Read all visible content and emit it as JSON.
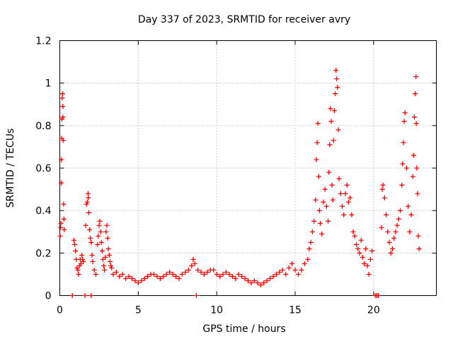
{
  "chart_data": {
    "type": "scatter",
    "title": "Day 337 of 2023, SRMTID for receiver avry",
    "xlabel": "GPS time / hours",
    "ylabel": "SRMTID / TECUs",
    "xlim": [
      0,
      24
    ],
    "ylim": [
      0,
      1.2
    ],
    "xticks": [
      0,
      5,
      10,
      15,
      20
    ],
    "xtick_labels": [
      "0",
      "5",
      "10",
      "15",
      "20"
    ],
    "yticks": [
      0,
      0.2,
      0.4,
      0.6,
      0.8,
      1.0,
      1.2
    ],
    "ytick_labels": [
      "0",
      "0.2",
      "0.4",
      "0.6",
      "0.8",
      "1",
      "1.2"
    ],
    "grid": true,
    "legend": "none",
    "marker": "+",
    "series": [
      {
        "name": "SRMTID",
        "color": "#ff0000",
        "points": [
          [
            0.02,
            0.28
          ],
          [
            0.05,
            0.32
          ],
          [
            0.07,
            0.34
          ],
          [
            0.09,
            0.53
          ],
          [
            0.1,
            0.64
          ],
          [
            0.12,
            0.74
          ],
          [
            0.13,
            0.83
          ],
          [
            0.15,
            0.93
          ],
          [
            0.17,
            0.95
          ],
          [
            0.19,
            0.89
          ],
          [
            0.2,
            0.84
          ],
          [
            0.22,
            0.73
          ],
          [
            0.24,
            0.43
          ],
          [
            0.26,
            0.36
          ],
          [
            0.28,
            0.31
          ],
          [
            0.8,
            0.0
          ],
          [
            0.9,
            0.26
          ],
          [
            0.95,
            0.24
          ],
          [
            1.0,
            0.21
          ],
          [
            1.05,
            0.17
          ],
          [
            1.1,
            0.13
          ],
          [
            1.15,
            0.12
          ],
          [
            1.2,
            0.1
          ],
          [
            1.25,
            0.14
          ],
          [
            1.3,
            0.17
          ],
          [
            1.35,
            0.15
          ],
          [
            1.4,
            0.19
          ],
          [
            1.45,
            0.17
          ],
          [
            1.5,
            0.16
          ],
          [
            1.6,
            0.0
          ],
          [
            1.65,
            0.33
          ],
          [
            1.7,
            0.43
          ],
          [
            1.75,
            0.44
          ],
          [
            1.8,
            0.48
          ],
          [
            1.82,
            0.46
          ],
          [
            1.85,
            0.39
          ],
          [
            1.9,
            0.31
          ],
          [
            1.95,
            0.27
          ],
          [
            2.0,
            0.25
          ],
          [
            2.0,
            0.0
          ],
          [
            2.05,
            0.19
          ],
          [
            2.1,
            0.16
          ],
          [
            2.2,
            0.12
          ],
          [
            2.3,
            0.1
          ],
          [
            2.4,
            0.24
          ],
          [
            2.45,
            0.28
          ],
          [
            2.5,
            0.33
          ],
          [
            2.55,
            0.35
          ],
          [
            2.6,
            0.3
          ],
          [
            2.65,
            0.25
          ],
          [
            2.7,
            0.21
          ],
          [
            2.75,
            0.17
          ],
          [
            2.8,
            0.14
          ],
          [
            2.85,
            0.12
          ],
          [
            2.9,
            0.18
          ],
          [
            2.95,
            0.3
          ],
          [
            3.0,
            0.33
          ],
          [
            3.05,
            0.27
          ],
          [
            3.1,
            0.22
          ],
          [
            3.15,
            0.19
          ],
          [
            3.2,
            0.16
          ],
          [
            3.25,
            0.14
          ],
          [
            3.3,
            0.13
          ],
          [
            3.4,
            0.1
          ],
          [
            3.6,
            0.11
          ],
          [
            3.8,
            0.09
          ],
          [
            4.0,
            0.1
          ],
          [
            4.2,
            0.08
          ],
          [
            4.4,
            0.09
          ],
          [
            4.6,
            0.08
          ],
          [
            4.8,
            0.07
          ],
          [
            5.0,
            0.06
          ],
          [
            5.2,
            0.07
          ],
          [
            5.4,
            0.08
          ],
          [
            5.6,
            0.09
          ],
          [
            5.8,
            0.1
          ],
          [
            6.0,
            0.1
          ],
          [
            6.2,
            0.09
          ],
          [
            6.4,
            0.08
          ],
          [
            6.6,
            0.09
          ],
          [
            6.8,
            0.1
          ],
          [
            7.0,
            0.11
          ],
          [
            7.2,
            0.1
          ],
          [
            7.4,
            0.09
          ],
          [
            7.6,
            0.08
          ],
          [
            7.8,
            0.1
          ],
          [
            8.0,
            0.11
          ],
          [
            8.2,
            0.12
          ],
          [
            8.4,
            0.14
          ],
          [
            8.5,
            0.17
          ],
          [
            8.6,
            0.15
          ],
          [
            8.7,
            0.0
          ],
          [
            8.8,
            0.12
          ],
          [
            9.0,
            0.11
          ],
          [
            9.2,
            0.1
          ],
          [
            9.4,
            0.11
          ],
          [
            9.6,
            0.12
          ],
          [
            9.8,
            0.12
          ],
          [
            10.0,
            0.1
          ],
          [
            10.2,
            0.09
          ],
          [
            10.4,
            0.1
          ],
          [
            10.6,
            0.11
          ],
          [
            10.8,
            0.1
          ],
          [
            11.0,
            0.09
          ],
          [
            11.2,
            0.08
          ],
          [
            11.4,
            0.1
          ],
          [
            11.6,
            0.09
          ],
          [
            11.8,
            0.08
          ],
          [
            12.0,
            0.07
          ],
          [
            12.2,
            0.06
          ],
          [
            12.4,
            0.07
          ],
          [
            12.6,
            0.06
          ],
          [
            12.8,
            0.05
          ],
          [
            13.0,
            0.06
          ],
          [
            13.2,
            0.07
          ],
          [
            13.4,
            0.08
          ],
          [
            13.6,
            0.09
          ],
          [
            13.8,
            0.1
          ],
          [
            14.0,
            0.11
          ],
          [
            14.2,
            0.12
          ],
          [
            14.4,
            0.1
          ],
          [
            14.6,
            0.13
          ],
          [
            14.8,
            0.15
          ],
          [
            15.0,
            0.12
          ],
          [
            15.2,
            0.1
          ],
          [
            15.4,
            0.12
          ],
          [
            15.6,
            0.15
          ],
          [
            15.8,
            0.17
          ],
          [
            15.9,
            0.22
          ],
          [
            16.0,
            0.25
          ],
          [
            16.1,
            0.3
          ],
          [
            16.2,
            0.35
          ],
          [
            16.3,
            0.45
          ],
          [
            16.35,
            0.64
          ],
          [
            16.4,
            0.72
          ],
          [
            16.45,
            0.81
          ],
          [
            16.5,
            0.56
          ],
          [
            16.55,
            0.4
          ],
          [
            16.6,
            0.34
          ],
          [
            16.7,
            0.29
          ],
          [
            16.8,
            0.44
          ],
          [
            16.9,
            0.5
          ],
          [
            17.0,
            0.42
          ],
          [
            17.1,
            0.35
          ],
          [
            17.15,
            0.58
          ],
          [
            17.2,
            0.71
          ],
          [
            17.25,
            0.88
          ],
          [
            17.3,
            0.82
          ],
          [
            17.35,
            0.52
          ],
          [
            17.4,
            0.45
          ],
          [
            17.45,
            0.73
          ],
          [
            17.5,
            0.87
          ],
          [
            17.55,
            0.95
          ],
          [
            17.6,
            1.06
          ],
          [
            17.65,
            1.02
          ],
          [
            17.7,
            0.98
          ],
          [
            17.75,
            0.78
          ],
          [
            17.8,
            0.55
          ],
          [
            17.9,
            0.48
          ],
          [
            18.0,
            0.42
          ],
          [
            18.1,
            0.38
          ],
          [
            18.2,
            0.48
          ],
          [
            18.3,
            0.52
          ],
          [
            18.4,
            0.44
          ],
          [
            18.5,
            0.46
          ],
          [
            18.6,
            0.38
          ],
          [
            18.7,
            0.3
          ],
          [
            18.8,
            0.28
          ],
          [
            18.9,
            0.24
          ],
          [
            19.0,
            0.22
          ],
          [
            19.1,
            0.2
          ],
          [
            19.2,
            0.26
          ],
          [
            19.3,
            0.18
          ],
          [
            19.4,
            0.15
          ],
          [
            19.5,
            0.22
          ],
          [
            19.6,
            0.14
          ],
          [
            19.7,
            0.1
          ],
          [
            19.8,
            0.17
          ],
          [
            19.9,
            0.21
          ],
          [
            20.1,
            0.0
          ],
          [
            20.2,
            0.0
          ],
          [
            20.3,
            0.0
          ],
          [
            20.5,
            0.32
          ],
          [
            20.55,
            0.5
          ],
          [
            20.6,
            0.52
          ],
          [
            20.7,
            0.46
          ],
          [
            20.8,
            0.38
          ],
          [
            20.9,
            0.3
          ],
          [
            21.0,
            0.25
          ],
          [
            21.1,
            0.2
          ],
          [
            21.2,
            0.22
          ],
          [
            21.3,
            0.27
          ],
          [
            21.4,
            0.3
          ],
          [
            21.5,
            0.33
          ],
          [
            21.6,
            0.36
          ],
          [
            21.7,
            0.4
          ],
          [
            21.8,
            0.52
          ],
          [
            21.85,
            0.62
          ],
          [
            21.9,
            0.72
          ],
          [
            21.95,
            0.82
          ],
          [
            22.0,
            0.86
          ],
          [
            22.1,
            0.6
          ],
          [
            22.2,
            0.42
          ],
          [
            22.3,
            0.3
          ],
          [
            22.4,
            0.38
          ],
          [
            22.5,
            0.56
          ],
          [
            22.55,
            0.66
          ],
          [
            22.6,
            0.84
          ],
          [
            22.65,
            0.95
          ],
          [
            22.7,
            1.03
          ],
          [
            22.72,
            0.81
          ],
          [
            22.75,
            0.6
          ],
          [
            22.8,
            0.48
          ],
          [
            22.85,
            0.28
          ],
          [
            22.9,
            0.22
          ]
        ]
      }
    ]
  }
}
